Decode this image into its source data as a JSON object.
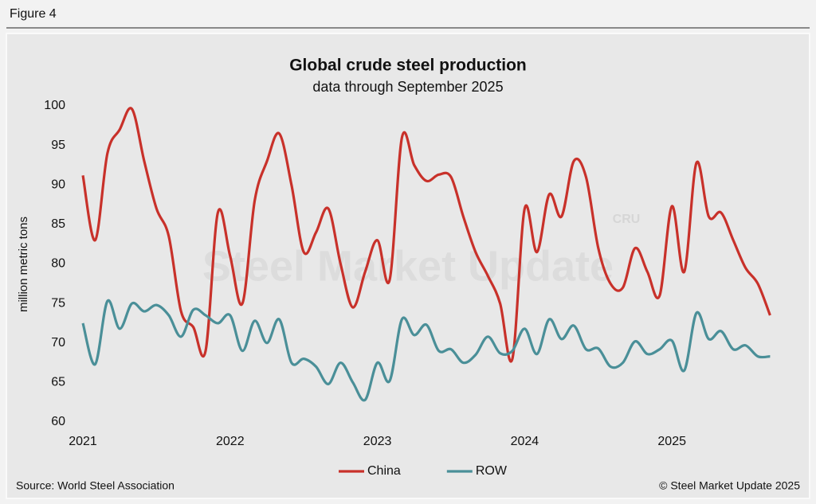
{
  "figure_label": "Figure 4",
  "chart_data": {
    "type": "line",
    "title": "Global crude steel production",
    "subtitle": "data through September 2025",
    "y_label": "million metric tons",
    "source": "Source: World Steel Association",
    "copyright": "© Steel Market Update 2025",
    "watermark": "Steel Market Update",
    "watermark_badge": "CRU",
    "categories": [
      "2021",
      null,
      null,
      null,
      null,
      null,
      null,
      null,
      null,
      null,
      null,
      null,
      "2022",
      null,
      null,
      null,
      null,
      null,
      null,
      null,
      null,
      null,
      null,
      null,
      "2023",
      null,
      null,
      null,
      null,
      null,
      null,
      null,
      null,
      null,
      null,
      null,
      "2024",
      null,
      null,
      null,
      null,
      null,
      null,
      null,
      null,
      null,
      null,
      null,
      "2025",
      null,
      null,
      null,
      null,
      null,
      null,
      null,
      null
    ],
    "series": [
      {
        "name": "China",
        "color": "#c8312a",
        "values": [
          91.2,
          83,
          94,
          97,
          99.6,
          93,
          87,
          83.5,
          74,
          72,
          69,
          86.5,
          81,
          75,
          88,
          93,
          96.5,
          90,
          81.5,
          84,
          87,
          80,
          74.5,
          79,
          83,
          78,
          96,
          92.5,
          90.5,
          91.3,
          91,
          86,
          81.5,
          78.5,
          75,
          68,
          87,
          81.5,
          88.8,
          86,
          93,
          91,
          82,
          77.5,
          77,
          82,
          79,
          76,
          87.3,
          79,
          92.8,
          86,
          86.5,
          83,
          79.5,
          77.5,
          73.5
        ]
      },
      {
        "name": "ROW",
        "color": "#4a8f98",
        "values": [
          72.5,
          67.3,
          75.3,
          71.8,
          75,
          74,
          74.8,
          73.5,
          70.8,
          74.2,
          73.5,
          72.5,
          73.5,
          69,
          72.8,
          70,
          73,
          67.5,
          68,
          67,
          64.8,
          67.5,
          65,
          62.8,
          67.5,
          65.2,
          73,
          71,
          72.3,
          69,
          69.2,
          67.5,
          68.5,
          70.8,
          68.7,
          69,
          71.8,
          68.6,
          73,
          70.5,
          72.2,
          69.2,
          69.3,
          67,
          67.5,
          70.2,
          68.6,
          69.2,
          70.3,
          66.5,
          73.8,
          70.5,
          71.5,
          69.2,
          69.7,
          68.3,
          68.3
        ]
      }
    ],
    "ylim": [
      60,
      100
    ],
    "yticks": [
      60,
      65,
      70,
      75,
      80,
      85,
      90,
      95,
      100
    ],
    "grid": false,
    "legend": "bottom"
  }
}
